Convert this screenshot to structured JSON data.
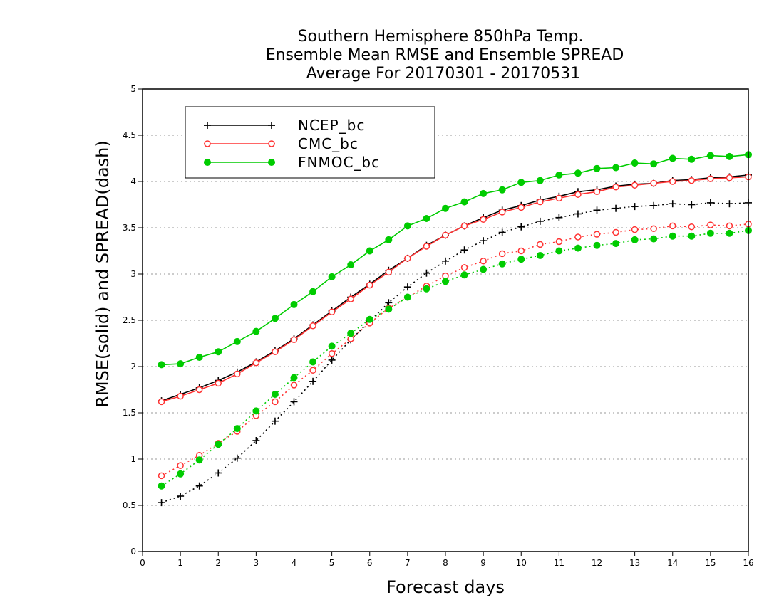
{
  "chart_data": {
    "type": "line",
    "title_lines": [
      "Southern Hemisphere 850hPa Temp.",
      "Ensemble Mean RMSE and Ensemble SPREAD",
      "Average For 20170301 - 20170531"
    ],
    "xlabel": "Forecast days",
    "ylabel": "RMSE(solid) and SPREAD(dash)",
    "xlim": [
      0,
      16
    ],
    "ylim": [
      0,
      5
    ],
    "x_ticks": [
      "0",
      "1",
      "2",
      "3",
      "4",
      "5",
      "6",
      "7",
      "8",
      "9",
      "10",
      "11",
      "12",
      "13",
      "14",
      "15",
      "16"
    ],
    "y_ticks": [
      "0",
      "0.5",
      "1",
      "1.5",
      "2",
      "2.5",
      "3",
      "3.5",
      "4",
      "4.5",
      "5"
    ],
    "grid": "horizontal dotted",
    "legend_position": "top-left",
    "x": [
      0.5,
      1,
      1.5,
      2,
      2.5,
      3,
      3.5,
      4,
      4.5,
      5,
      5.5,
      6,
      6.5,
      7,
      7.5,
      8,
      8.5,
      9,
      9.5,
      10,
      10.5,
      11,
      11.5,
      12,
      12.5,
      13,
      13.5,
      14,
      14.5,
      15,
      15.5,
      16
    ],
    "series": [
      {
        "name": "NCEP_bc",
        "color": "#000000",
        "marker": "plus",
        "rmse": [
          1.63,
          1.7,
          1.77,
          1.85,
          1.94,
          2.05,
          2.17,
          2.3,
          2.45,
          2.6,
          2.75,
          2.89,
          3.04,
          3.17,
          3.31,
          3.42,
          3.52,
          3.61,
          3.69,
          3.74,
          3.8,
          3.84,
          3.89,
          3.91,
          3.95,
          3.97,
          3.98,
          4.01,
          4.02,
          4.04,
          4.05,
          4.07
        ],
        "spread": [
          0.53,
          0.6,
          0.71,
          0.85,
          1.01,
          1.2,
          1.41,
          1.62,
          1.84,
          2.07,
          2.29,
          2.49,
          2.69,
          2.86,
          3.01,
          3.14,
          3.26,
          3.36,
          3.45,
          3.51,
          3.57,
          3.61,
          3.65,
          3.69,
          3.71,
          3.73,
          3.74,
          3.76,
          3.75,
          3.77,
          3.76,
          3.77
        ]
      },
      {
        "name": "CMC_bc",
        "color": "#ff3333",
        "marker": "open-circle",
        "rmse": [
          1.62,
          1.68,
          1.75,
          1.82,
          1.92,
          2.04,
          2.16,
          2.29,
          2.44,
          2.59,
          2.73,
          2.88,
          3.02,
          3.17,
          3.3,
          3.42,
          3.52,
          3.59,
          3.67,
          3.72,
          3.78,
          3.82,
          3.86,
          3.89,
          3.94,
          3.96,
          3.98,
          4.0,
          4.01,
          4.03,
          4.04,
          4.05
        ],
        "spread": [
          0.82,
          0.93,
          1.04,
          1.17,
          1.3,
          1.47,
          1.62,
          1.8,
          1.96,
          2.14,
          2.3,
          2.47,
          2.63,
          2.75,
          2.87,
          2.98,
          3.07,
          3.14,
          3.22,
          3.25,
          3.32,
          3.35,
          3.4,
          3.43,
          3.45,
          3.48,
          3.49,
          3.52,
          3.51,
          3.53,
          3.52,
          3.54
        ]
      },
      {
        "name": "FNMOC_bc",
        "color": "#00cc00",
        "marker": "filled-circle",
        "rmse": [
          2.02,
          2.03,
          2.1,
          2.16,
          2.27,
          2.38,
          2.52,
          2.67,
          2.81,
          2.97,
          3.1,
          3.25,
          3.37,
          3.52,
          3.6,
          3.71,
          3.78,
          3.87,
          3.91,
          3.99,
          4.01,
          4.07,
          4.09,
          4.14,
          4.15,
          4.2,
          4.19,
          4.25,
          4.24,
          4.28,
          4.27,
          4.29
        ],
        "spread": [
          0.71,
          0.84,
          0.99,
          1.16,
          1.33,
          1.52,
          1.7,
          1.88,
          2.05,
          2.22,
          2.36,
          2.51,
          2.62,
          2.75,
          2.84,
          2.92,
          2.99,
          3.05,
          3.11,
          3.16,
          3.2,
          3.25,
          3.28,
          3.31,
          3.33,
          3.37,
          3.38,
          3.41,
          3.41,
          3.44,
          3.44,
          3.47
        ]
      }
    ]
  }
}
